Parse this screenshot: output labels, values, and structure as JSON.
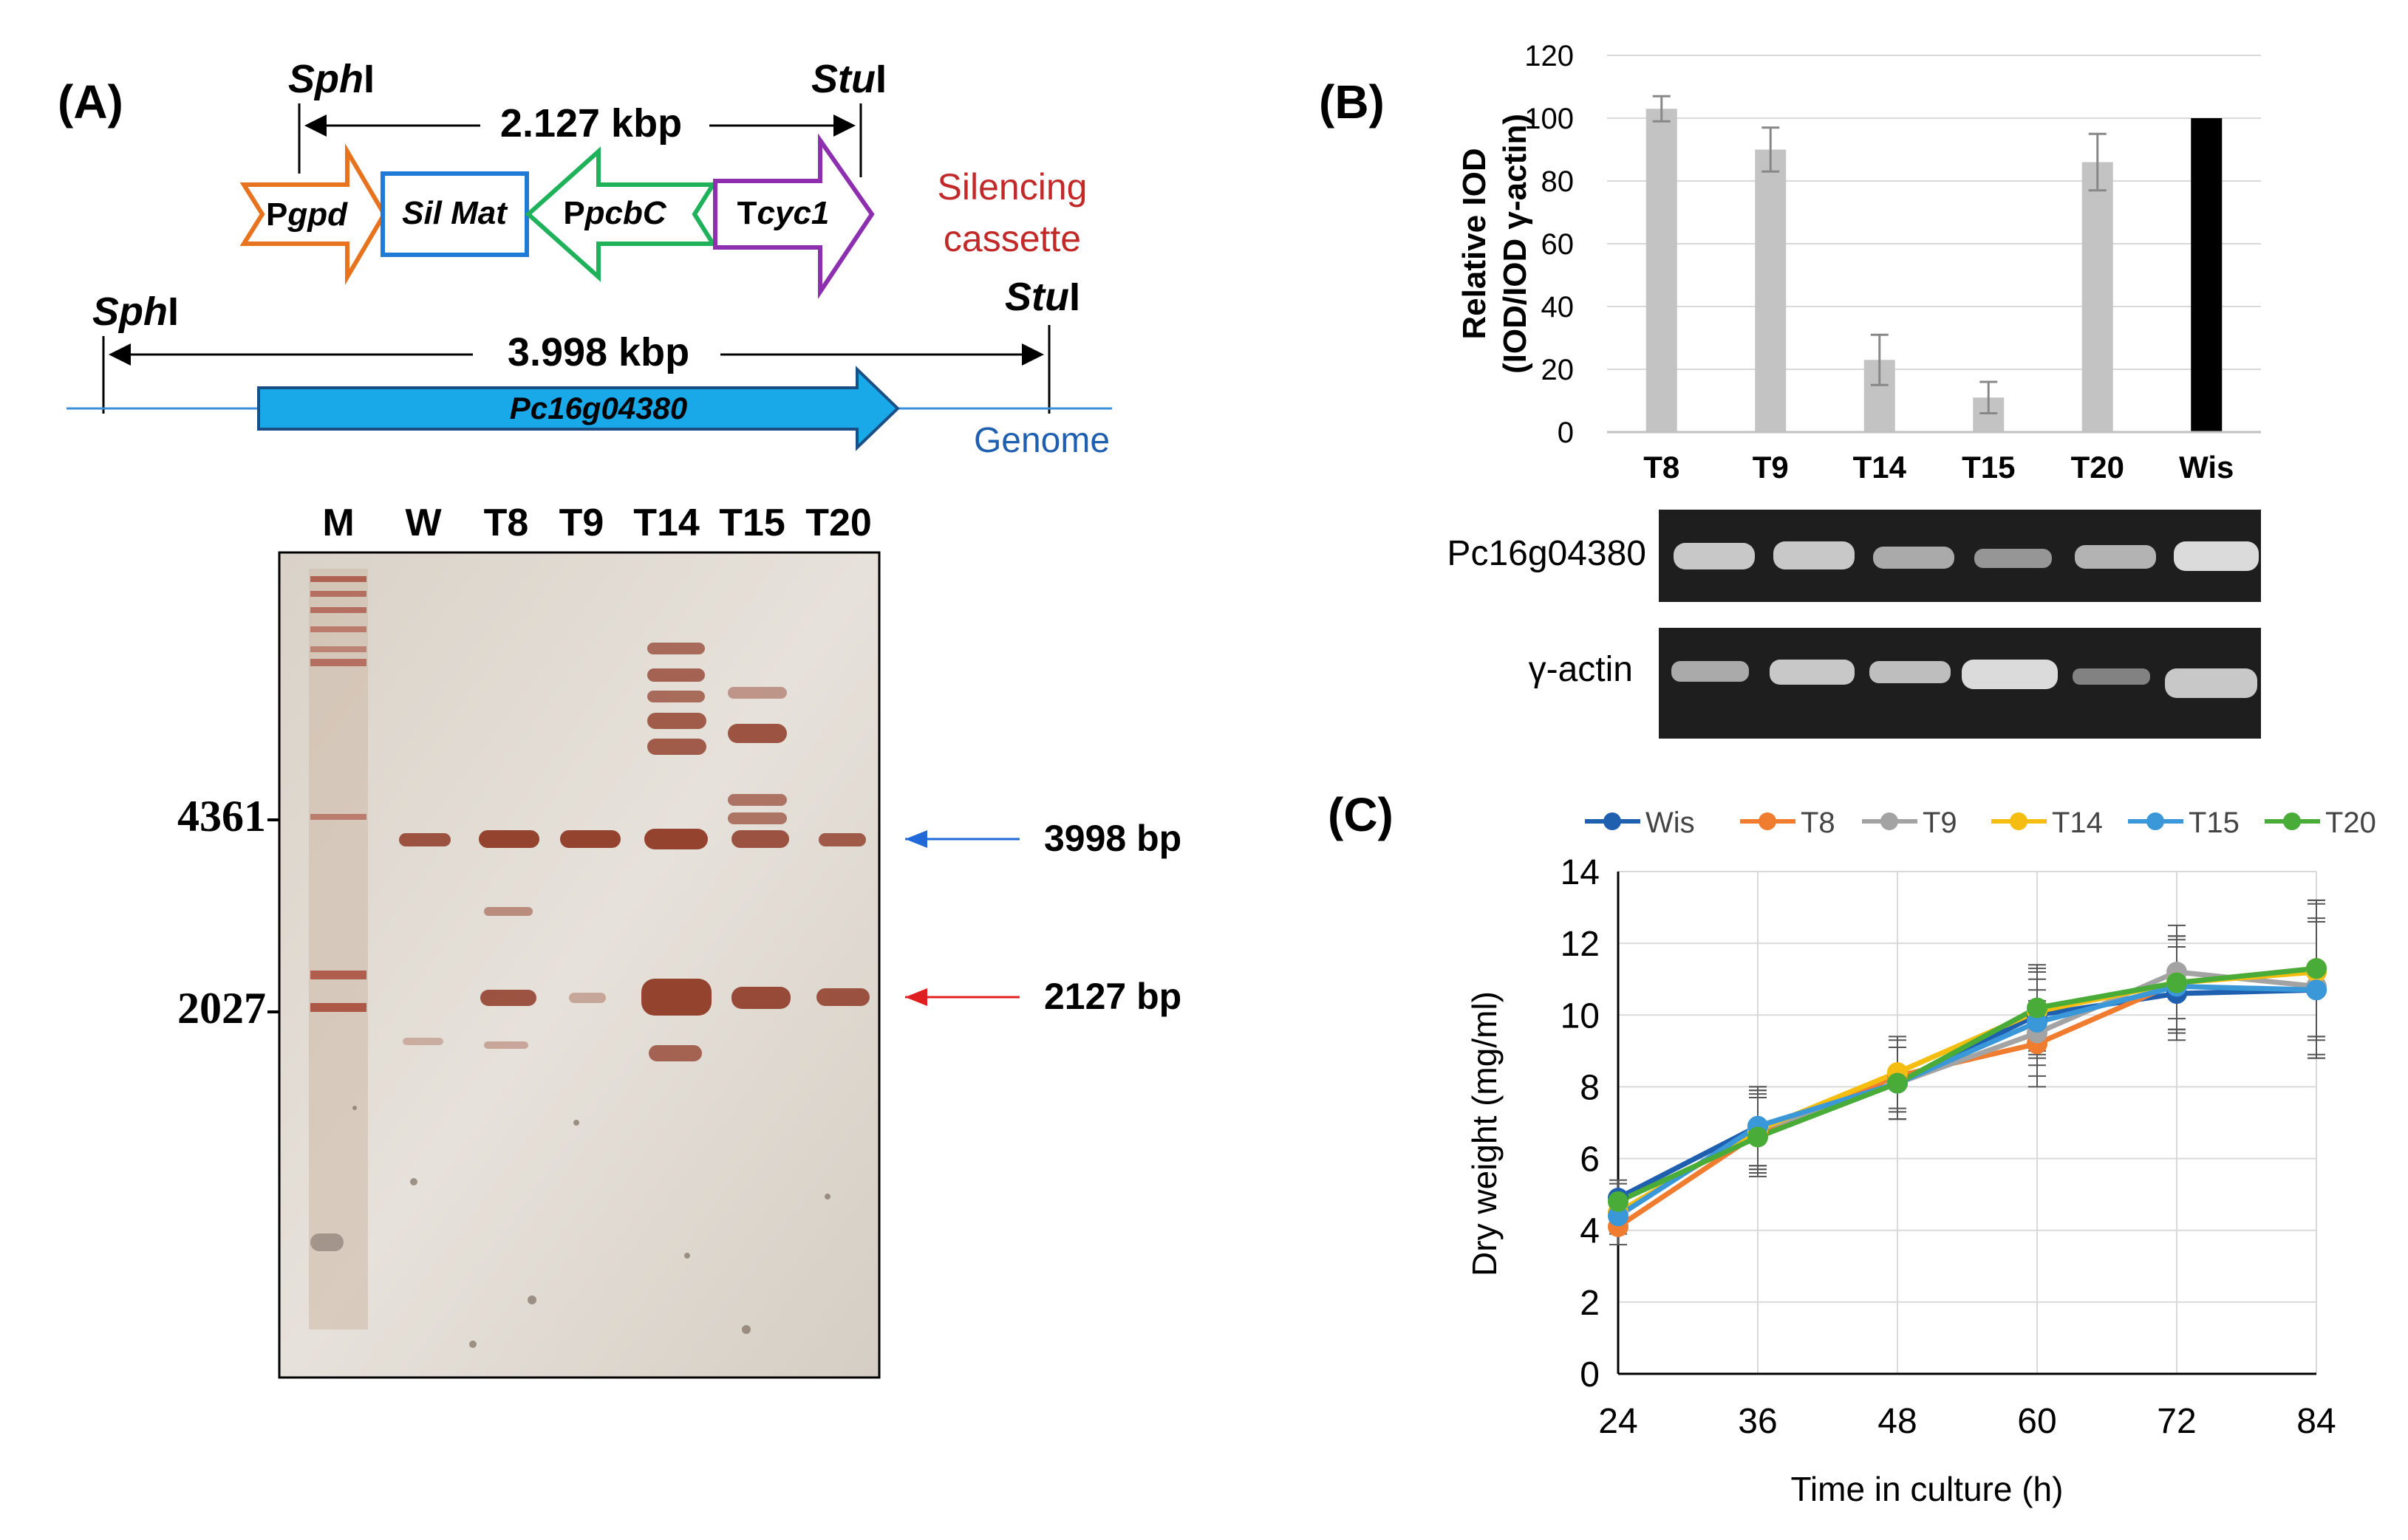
{
  "panel_a": {
    "label": "(A)",
    "construct": {
      "site_left": "Sph",
      "site_left_suffix": "I",
      "site_right": "Stu",
      "site_right_suffix": "I",
      "size": "2.127 kbp",
      "box_pgpd_prefix": "P",
      "box_pgpd_italic": "gpd",
      "box_silmat": "Sil Mat",
      "box_ppcbc_prefix": "P",
      "box_ppcbc_italic": "pcbC",
      "box_tcyc_prefix": "T",
      "box_tcyc_italic": "cyc1",
      "cassette_line1": "Silencing",
      "cassette_line2": "cassette"
    },
    "genome": {
      "site_left": "Sph",
      "site_left_suffix": "I",
      "site_right": "Stu",
      "site_right_suffix": "I",
      "size": "3.998 kbp",
      "gene": "Pc16g04380",
      "label": "Genome"
    },
    "blot": {
      "lanes": [
        "M",
        "W",
        "T8",
        "T9",
        "T14",
        "T15",
        "T20"
      ],
      "marker_top": "4361",
      "marker_bottom": "2027",
      "band_top_label": "3998 bp",
      "band_bottom_label": "2127 bp"
    }
  },
  "panel_b": {
    "label": "(B)",
    "gel_labels": [
      "Pc16g04380",
      "γ-actin"
    ],
    "chart_data": {
      "type": "bar",
      "title": "",
      "ylabel_line1": "Relative IOD",
      "ylabel_line2": "(IOD/IOD γ-actin)",
      "categories": [
        "T8",
        "T9",
        "T14",
        "T15",
        "T20",
        "Wis"
      ],
      "values": [
        103,
        90,
        23,
        11,
        86,
        100
      ],
      "errors": [
        4,
        7,
        8,
        5,
        9,
        0
      ],
      "ylim": [
        0,
        120
      ],
      "yticks": [
        "0",
        "20",
        "40",
        "60",
        "80",
        "100",
        "120"
      ],
      "bar_color": "#c3c3c3",
      "control_color": "#000000"
    }
  },
  "panel_c": {
    "label": "(C)",
    "chart_data": {
      "type": "line",
      "xlabel": "Time in culture (h)",
      "ylabel": "Dry weight (mg/ml)",
      "x": [
        24,
        36,
        48,
        60,
        72,
        84
      ],
      "xticks": [
        "24",
        "36",
        "48",
        "60",
        "72",
        "84"
      ],
      "yticks": [
        "0",
        "2",
        "4",
        "6",
        "8",
        "10",
        "12",
        "14"
      ],
      "ylim": [
        0,
        14
      ],
      "series": [
        {
          "name": "Wis",
          "color": "#1f5fb0",
          "values": [
            4.9,
            6.9,
            8.1,
            10.0,
            10.6,
            10.7
          ]
        },
        {
          "name": "T8",
          "color": "#f07c30",
          "values": [
            4.1,
            6.7,
            8.3,
            9.2,
            10.9,
            11.3
          ]
        },
        {
          "name": "T9",
          "color": "#a3a3a3",
          "values": [
            4.5,
            6.8,
            8.1,
            9.5,
            11.2,
            10.8
          ]
        },
        {
          "name": "T14",
          "color": "#f5bd0f",
          "values": [
            4.5,
            6.8,
            8.4,
            10.1,
            10.9,
            11.2
          ]
        },
        {
          "name": "T15",
          "color": "#3a98d8",
          "values": [
            4.4,
            6.9,
            8.1,
            9.8,
            10.8,
            10.7
          ]
        },
        {
          "name": "T20",
          "color": "#4aac38",
          "values": [
            4.8,
            6.6,
            8.1,
            10.2,
            10.9,
            11.3
          ]
        }
      ],
      "errors": [
        0.5,
        1.1,
        1.0,
        1.2,
        1.3,
        1.9
      ]
    }
  }
}
